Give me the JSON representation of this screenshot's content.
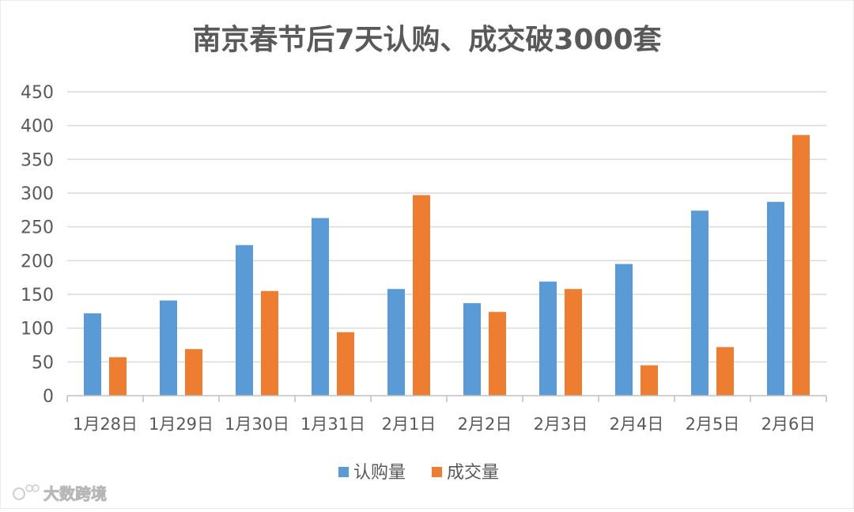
{
  "chart_data": {
    "type": "bar",
    "title": "南京春节后7天认购、成交破3000套",
    "categories": [
      "1月28日",
      "1月29日",
      "1月30日",
      "1月31日",
      "2月1日",
      "2月2日",
      "2月3日",
      "2月4日",
      "2月5日",
      "2月6日"
    ],
    "series": [
      {
        "name": "认购量",
        "color": "#5b9bd5",
        "values": [
          122,
          141,
          223,
          263,
          158,
          137,
          169,
          195,
          274,
          287
        ]
      },
      {
        "name": "成交量",
        "color": "#ed7d31",
        "values": [
          57,
          69,
          155,
          94,
          297,
          124,
          158,
          45,
          72,
          386
        ]
      }
    ],
    "ylim": [
      0,
      450
    ],
    "yticks": [
      "0",
      "50",
      "100",
      "150",
      "200",
      "250",
      "300",
      "350",
      "400",
      "450"
    ],
    "xlabel": "",
    "ylabel": "",
    "grid": true,
    "legend": "bottom"
  },
  "watermark": "大数跨境"
}
